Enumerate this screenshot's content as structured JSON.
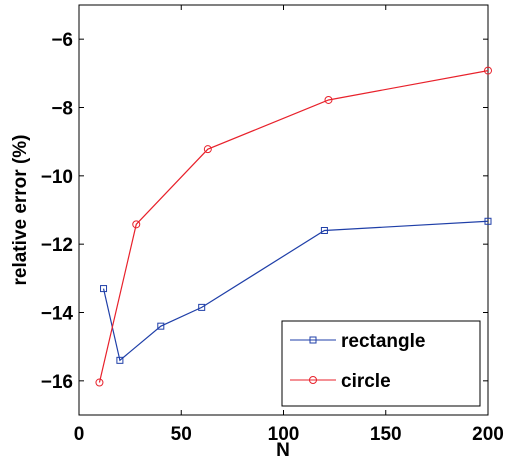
{
  "chart_data": {
    "type": "line",
    "title": "",
    "xlabel": "N",
    "ylabel": "relative error (%)",
    "xlim": [
      0,
      200
    ],
    "ylim": [
      -17,
      -5
    ],
    "xticks": [
      0,
      50,
      100,
      150,
      200
    ],
    "yticks": [
      -16,
      -14,
      -12,
      -10,
      -8,
      -6
    ],
    "legend_position": "bottom-right",
    "grid": false,
    "series": [
      {
        "name": "rectangle",
        "color": "#1f3fa8",
        "marker": "square",
        "x": [
          12,
          20,
          40,
          60,
          120,
          200
        ],
        "y": [
          -13.3,
          -15.4,
          -14.4,
          -13.85,
          -11.6,
          -11.33
        ]
      },
      {
        "name": "circle",
        "color": "#e8212b",
        "marker": "circle",
        "x": [
          10,
          28,
          63,
          122,
          200
        ],
        "y": [
          -16.05,
          -11.42,
          -9.22,
          -7.78,
          -6.92
        ]
      }
    ]
  }
}
